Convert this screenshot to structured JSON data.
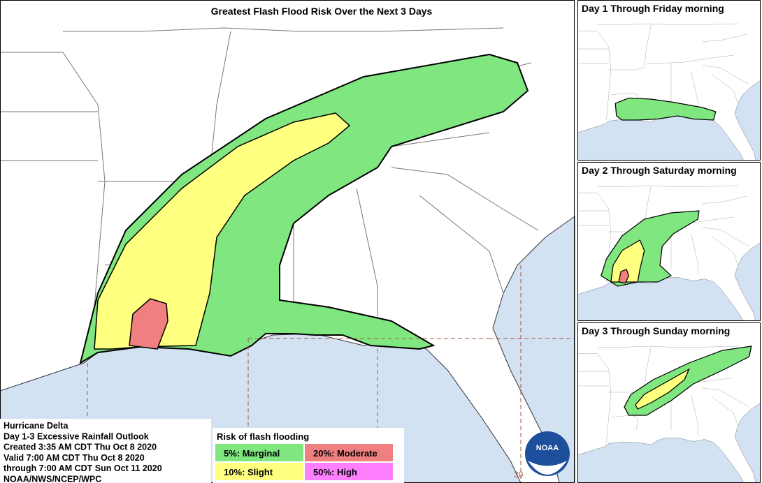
{
  "title": "Greatest Flash Flood Risk Over the Next 3 Days",
  "panels": [
    "Day 1 Through Friday morning",
    "Day 2 Through Saturday morning",
    "Day 3 Through Sunday morning"
  ],
  "info": [
    "Hurricane Delta",
    "Day 1-3 Excessive Rainfall Outlook",
    "Created 3:35 AM CDT Thu Oct 8 2020",
    "Valid 7:00 AM CDT Thu Oct 8 2020",
    "through 7:00 AM CDT Sun Oct 11 2020",
    "NOAA/NWS/NCEP/WPC"
  ],
  "legend": {
    "title": "Risk of flash flooding",
    "items": [
      {
        "label": "5%: Marginal",
        "color": "#80e680"
      },
      {
        "label": "20%: Moderate",
        "color": "#f08080"
      },
      {
        "label": "10%: Slight",
        "color": "#ffff80"
      },
      {
        "label": "50%: High",
        "color": "#ff80ff"
      }
    ]
  },
  "map_label": "30",
  "logo": "NOAA"
}
